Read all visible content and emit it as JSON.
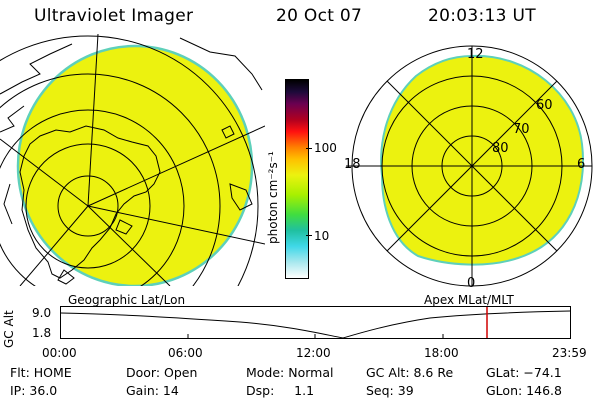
{
  "header": {
    "title": "Ultraviolet Imager",
    "date": "20 Oct 07",
    "time": "20:03:13 UT"
  },
  "colorbar": {
    "label": "photon cm⁻²s⁻¹",
    "ticks": [
      "100",
      "10"
    ]
  },
  "geo_panel": {
    "label": "Geographic Lat/Lon"
  },
  "apex_panel": {
    "label": "Apex MLat/MLT",
    "lat_labels": [
      "60",
      "70",
      "80"
    ],
    "mlt_labels": [
      "12",
      "18",
      "6",
      "0"
    ]
  },
  "altitude_plot": {
    "ylabel": "GC Alt",
    "ymax": "9.0",
    "ymin": "1.8",
    "time_ticks": [
      "00:00",
      "06:00",
      "12:00",
      "18:00",
      "23:59"
    ]
  },
  "info": {
    "flt": "Flt: HOME",
    "ip": "IP: 36.0",
    "door": "Door: Open",
    "gain": "Gain: 14",
    "mode": "Mode: Normal",
    "dsp": "Dsp:     1.1",
    "gcalt": "GC Alt: 8.6 Re",
    "seq": "Seq: 39",
    "glat": "GLat: −74.1",
    "glon": "GLon: 146.8"
  },
  "colors": {
    "disc_fill": "#ecf20f",
    "disc_edge": "#5ed0ba",
    "marker": "#d00000"
  }
}
